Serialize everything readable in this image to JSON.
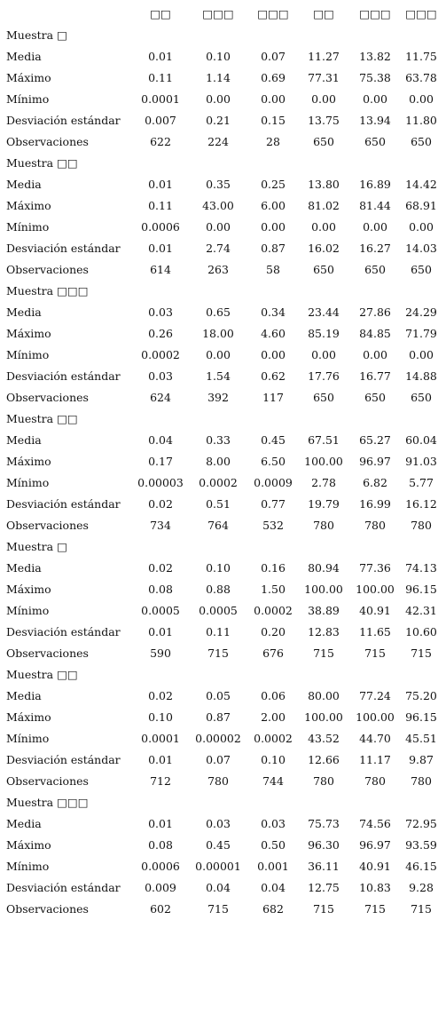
{
  "header": {
    "columns": [
      "□□",
      "□□□",
      "□□□",
      "□□",
      "□□□",
      "□□□"
    ]
  },
  "sections": [
    {
      "title": "Muestra □",
      "rows": [
        [
          "Media",
          "0.01",
          "0.10",
          "0.07",
          "11.27",
          "13.82",
          "11.75"
        ],
        [
          "Máximo",
          "0.11",
          "1.14",
          "0.69",
          "77.31",
          "75.38",
          "63.78"
        ],
        [
          "Mínimo",
          "0.0001",
          "0.00",
          "0.00",
          "0.00",
          "0.00",
          "0.00"
        ],
        [
          "Desviación estándar",
          "0.007",
          "0.21",
          "0.15",
          "13.75",
          "13.94",
          "11.80"
        ],
        [
          "Observaciones",
          "622",
          "224",
          "28",
          "650",
          "650",
          "650"
        ]
      ]
    },
    {
      "title": "Muestra □□",
      "rows": [
        [
          "Media",
          "0.01",
          "0.35",
          "0.25",
          "13.80",
          "16.89",
          "14.42"
        ],
        [
          "Máximo",
          "0.11",
          "43.00",
          "6.00",
          "81.02",
          "81.44",
          "68.91"
        ],
        [
          "Mínimo",
          "0.0006",
          "0.00",
          "0.00",
          "0.00",
          "0.00",
          "0.00"
        ],
        [
          "Desviación estándar",
          "0.01",
          "2.74",
          "0.87",
          "16.02",
          "16.27",
          "14.03"
        ],
        [
          "Observaciones",
          "614",
          "263",
          "58",
          "650",
          "650",
          "650"
        ]
      ]
    },
    {
      "title": "Muestra □□□",
      "rows": [
        [
          "Media",
          "0.03",
          "0.65",
          "0.34",
          "23.44",
          "27.86",
          "24.29"
        ],
        [
          "Máximo",
          "0.26",
          "18.00",
          "4.60",
          "85.19",
          "84.85",
          "71.79"
        ],
        [
          "Mínimo",
          "0.0002",
          "0.00",
          "0.00",
          "0.00",
          "0.00",
          "0.00"
        ],
        [
          "Desviación estándar",
          "0.03",
          "1.54",
          "0.62",
          "17.76",
          "16.77",
          "14.88"
        ],
        [
          "Observaciones",
          "624",
          "392",
          "117",
          "650",
          "650",
          "650"
        ]
      ]
    },
    {
      "title": "Muestra □□",
      "rows": [
        [
          "Media",
          "0.04",
          "0.33",
          "0.45",
          "67.51",
          "65.27",
          "60.04"
        ],
        [
          "Máximo",
          "0.17",
          "8.00",
          "6.50",
          "100.00",
          "96.97",
          "91.03"
        ],
        [
          "Mínimo",
          "0.00003",
          "0.0002",
          "0.0009",
          "2.78",
          "6.82",
          "5.77"
        ],
        [
          "Desviación estándar",
          "0.02",
          "0.51",
          "0.77",
          "19.79",
          "16.99",
          "16.12"
        ],
        [
          "Observaciones",
          "734",
          "764",
          "532",
          "780",
          "780",
          "780"
        ]
      ]
    },
    {
      "title": "Muestra □",
      "rows": [
        [
          "Media",
          "0.02",
          "0.10",
          "0.16",
          "80.94",
          "77.36",
          "74.13"
        ],
        [
          "Máximo",
          "0.08",
          "0.88",
          "1.50",
          "100.00",
          "100.00",
          "96.15"
        ],
        [
          "Mínimo",
          "0.0005",
          "0.0005",
          "0.0002",
          "38.89",
          "40.91",
          "42.31"
        ],
        [
          "Desviación estándar",
          "0.01",
          "0.11",
          "0.20",
          "12.83",
          "11.65",
          "10.60"
        ],
        [
          "Observaciones",
          "590",
          "715",
          "676",
          "715",
          "715",
          "715"
        ]
      ]
    },
    {
      "title": "Muestra □□",
      "rows": [
        [
          "Media",
          "0.02",
          "0.05",
          "0.06",
          "80.00",
          "77.24",
          "75.20"
        ],
        [
          "Máximo",
          "0.10",
          "0.87",
          "2.00",
          "100.00",
          "100.00",
          "96.15"
        ],
        [
          "Mínimo",
          "0.0001",
          "0.00002",
          "0.0002",
          "43.52",
          "44.70",
          "45.51"
        ],
        [
          "Desviación estándar",
          "0.01",
          "0.07",
          "0.10",
          "12.66",
          "11.17",
          "9.87"
        ],
        [
          "Observaciones",
          "712",
          "780",
          "744",
          "780",
          "780",
          "780"
        ]
      ]
    },
    {
      "title": "Muestra □□□",
      "rows": [
        [
          "Media",
          "0.01",
          "0.03",
          "0.03",
          "75.73",
          "74.56",
          "72.95"
        ],
        [
          "Máximo",
          "0.08",
          "0.45",
          "0.50",
          "96.30",
          "96.97",
          "93.59"
        ],
        [
          "Mínimo",
          "0.0006",
          "0.00001",
          "0.001",
          "36.11",
          "40.91",
          "46.15"
        ],
        [
          "Desviación estándar",
          "0.009",
          "0.04",
          "0.04",
          "12.75",
          "10.83",
          "9.28"
        ],
        [
          "Observaciones",
          "602",
          "715",
          "682",
          "715",
          "715",
          "715"
        ]
      ]
    }
  ]
}
